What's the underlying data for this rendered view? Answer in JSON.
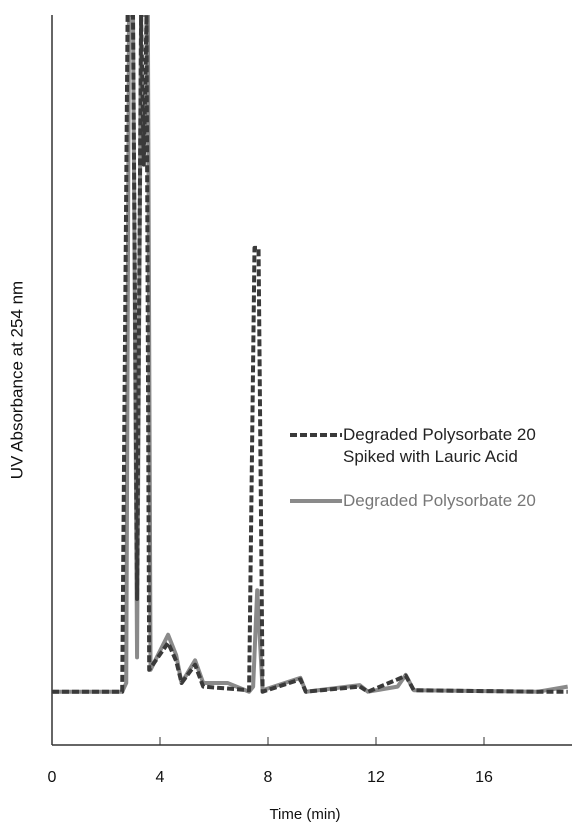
{
  "chart_data": {
    "type": "line",
    "x_label": "Time (min)",
    "y_label": "UV Absorbance at 254 nm",
    "xlim": [
      0,
      19.2
    ],
    "xticks": [
      0,
      4,
      8,
      12,
      16
    ],
    "ylim": [
      0,
      100
    ],
    "legend": "right",
    "series": [
      {
        "name": "Degraded Polysorbate 20 Spiked with Lauric Acid",
        "color": "#3a3a3a",
        "dash": true,
        "x": [
          0,
          2.6,
          2.8,
          3.0,
          3.15,
          3.3,
          3.4,
          3.5,
          3.6,
          4.3,
          4.6,
          4.8,
          5.3,
          5.6,
          7.3,
          7.5,
          7.65,
          7.8,
          9.2,
          9.4,
          11.4,
          11.7,
          12.8,
          13.1,
          13.4,
          18,
          19.1
        ],
        "values": [
          7.3,
          7.3,
          100,
          100,
          20,
          100,
          79.5,
          100,
          10.3,
          14,
          11.5,
          8.5,
          11,
          8,
          7.5,
          68.1,
          68.1,
          7.3,
          9,
          7.3,
          8,
          7.3,
          9,
          9.5,
          7.5,
          7.3,
          7.3
        ]
      },
      {
        "name": "Degraded Polysorbate 20",
        "color": "#8a8a8a",
        "dash": false,
        "x": [
          0,
          2.6,
          2.75,
          2.85,
          3.0,
          3.15,
          3.3,
          3.55,
          3.65,
          4.3,
          4.6,
          4.8,
          5.3,
          5.6,
          6.5,
          7.3,
          7.45,
          7.6,
          7.8,
          9.2,
          9.4,
          11.4,
          11.7,
          12.8,
          13.1,
          13.4,
          18,
          19.1
        ],
        "values": [
          7.3,
          7.3,
          8.5,
          100,
          100,
          12,
          100,
          100,
          10.3,
          15.1,
          12.3,
          8.5,
          11.6,
          8.5,
          8.5,
          7.3,
          8,
          21.2,
          7.5,
          9.2,
          7.3,
          8.2,
          7.3,
          8,
          9.6,
          7.5,
          7.3,
          8
        ]
      }
    ]
  }
}
